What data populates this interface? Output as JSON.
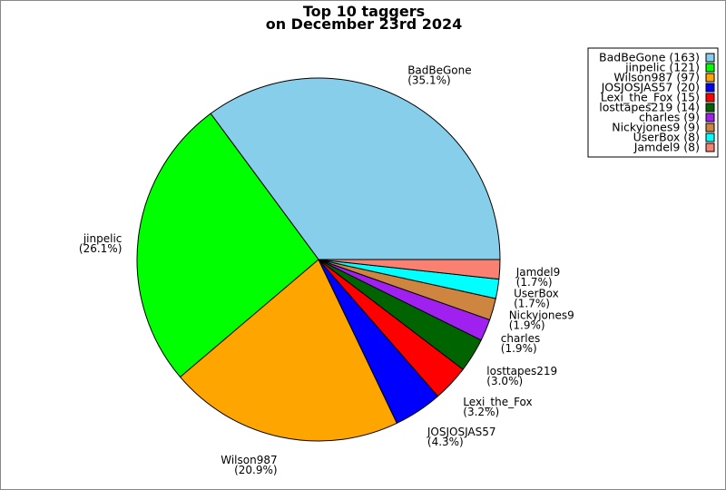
{
  "chart_data": {
    "type": "pie",
    "title": "Top 10 taggers",
    "subtitle": "on December 23rd 2024",
    "legend_position": "top-right",
    "slices": [
      {
        "name": "BadBeGone",
        "value": 163,
        "pct_label": "(35.1%)",
        "legend_label": "BadBeGone (163)",
        "color": "#87ceeb"
      },
      {
        "name": "jinpelic",
        "value": 121,
        "pct_label": "(26.1%)",
        "legend_label": "jinpelic (121)",
        "color": "#00ff00"
      },
      {
        "name": "Wilson987",
        "value": 97,
        "pct_label": "(20.9%)",
        "legend_label": "Wilson987 (97)",
        "color": "#ffa500"
      },
      {
        "name": "JOSJOSJAS57",
        "value": 20,
        "pct_label": "(4.3%)",
        "legend_label": "JOSJOSJAS57 (20)",
        "color": "#0000ff"
      },
      {
        "name": "Lexi_the_Fox",
        "value": 15,
        "pct_label": "(3.2%)",
        "legend_label": "Lexi_the_Fox (15)",
        "color": "#ff0000"
      },
      {
        "name": "losttapes219",
        "value": 14,
        "pct_label": "(3.0%)",
        "legend_label": "losttapes219 (14)",
        "color": "#006400"
      },
      {
        "name": "charles",
        "value": 9,
        "pct_label": "(1.9%)",
        "legend_label": "charles (9)",
        "color": "#a020f0"
      },
      {
        "name": "Nickyjones9",
        "value": 9,
        "pct_label": "(1.9%)",
        "legend_label": "Nickyjones9 (9)",
        "color": "#cd853f"
      },
      {
        "name": "UserBox",
        "value": 8,
        "pct_label": "(1.7%)",
        "legend_label": "UserBox (8)",
        "color": "#00ffff"
      },
      {
        "name": "Jamdel9",
        "value": 8,
        "pct_label": "(1.7%)",
        "legend_label": "Jamdel9 (8)",
        "color": "#fa8072"
      }
    ]
  }
}
